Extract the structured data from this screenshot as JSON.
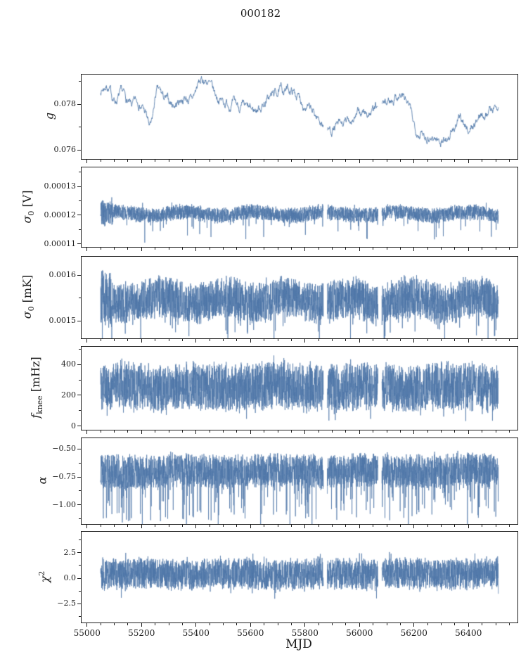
{
  "colors": {
    "line": "#4d76a8",
    "axis": "#1c1c1c",
    "background": "#ffffff"
  },
  "chart_data": {
    "type": "line",
    "title": "000182",
    "xlabel": "MJD",
    "grid": false,
    "legend": "none",
    "xlim": [
      54980,
      56580
    ],
    "x_data_range": [
      55050,
      56510
    ],
    "x_major_ticks": [
      {
        "v": 55000,
        "label": "55000"
      },
      {
        "v": 55200,
        "label": "55200"
      },
      {
        "v": 55400,
        "label": "55400"
      },
      {
        "v": 55600,
        "label": "55600"
      },
      {
        "v": 55800,
        "label": "55800"
      },
      {
        "v": 56000,
        "label": "56000"
      },
      {
        "v": 56200,
        "label": "56200"
      },
      {
        "v": 56400,
        "label": "56400"
      }
    ],
    "x_minor_step": 50,
    "gaps": [
      [
        55868,
        55882
      ],
      [
        56068,
        56082
      ]
    ],
    "panels": [
      {
        "name": "g",
        "ylabel": {
          "main": "g"
        },
        "ylim": [
          0.0756,
          0.0793
        ],
        "yticks": [
          {
            "v": 0.076,
            "label": "0.076"
          },
          {
            "v": 0.078,
            "label": "0.078"
          }
        ],
        "series": {
          "kind": "walk",
          "seed": 7,
          "jitter": 0.00012,
          "keypoints": [
            [
              55050,
              0.0786
            ],
            [
              55075,
              0.0788
            ],
            [
              55100,
              0.0782
            ],
            [
              55130,
              0.0784
            ],
            [
              55160,
              0.0779
            ],
            [
              55190,
              0.0781
            ],
            [
              55215,
              0.0776
            ],
            [
              55235,
              0.077
            ],
            [
              55255,
              0.0785
            ],
            [
              55285,
              0.0782
            ],
            [
              55320,
              0.078
            ],
            [
              55355,
              0.0783
            ],
            [
              55385,
              0.0782
            ],
            [
              55410,
              0.0789
            ],
            [
              55440,
              0.079
            ],
            [
              55470,
              0.0784
            ],
            [
              55505,
              0.0781
            ],
            [
              55540,
              0.078
            ],
            [
              55575,
              0.0778
            ],
            [
              55610,
              0.0777
            ],
            [
              55645,
              0.078
            ],
            [
              55680,
              0.0784
            ],
            [
              55715,
              0.0786
            ],
            [
              55750,
              0.0786
            ],
            [
              55785,
              0.0782
            ],
            [
              55820,
              0.0777
            ],
            [
              55855,
              0.0773
            ],
            [
              55885,
              0.0769
            ],
            [
              55915,
              0.077
            ],
            [
              55945,
              0.0771
            ],
            [
              55975,
              0.0774
            ],
            [
              56005,
              0.0776
            ],
            [
              56035,
              0.0776
            ],
            [
              56065,
              0.0778
            ],
            [
              56095,
              0.078
            ],
            [
              56125,
              0.0783
            ],
            [
              56155,
              0.0784
            ],
            [
              56180,
              0.0779
            ],
            [
              56205,
              0.077
            ],
            [
              56235,
              0.0767
            ],
            [
              56265,
              0.0766
            ],
            [
              56295,
              0.0764
            ],
            [
              56325,
              0.0766
            ],
            [
              56355,
              0.077
            ],
            [
              56375,
              0.0774
            ],
            [
              56395,
              0.0769
            ],
            [
              56420,
              0.0771
            ],
            [
              56450,
              0.0776
            ],
            [
              56480,
              0.0778
            ],
            [
              56510,
              0.0779
            ]
          ]
        }
      },
      {
        "name": "sigma0-v",
        "ylabel": {
          "main": "σ",
          "sub": "0",
          "post": " [V]"
        },
        "ylim": [
          0.000109,
          0.0001366
        ],
        "yticks": [
          {
            "v": 0.00011,
            "label": "0.00011"
          },
          {
            "v": 0.00012,
            "label": "0.00012"
          },
          {
            "v": 0.00013,
            "label": "0.00013"
          }
        ],
        "series": {
          "kind": "noise",
          "seed": 21,
          "center": 0.0001205,
          "halfband": 2.8e-06,
          "wave_amp": 7e-07,
          "wave_period": 260,
          "spike_down_rate": 0.02,
          "spike_down": 7.5e-06,
          "spike_up_rate": 0.008,
          "spike_up": 2.8e-06,
          "burst_until": 55095,
          "burst_factor": 1.8
        }
      },
      {
        "name": "sigma0-mk",
        "ylabel": {
          "main": "σ",
          "sub": "0",
          "post": " [mK]"
        },
        "ylim": [
          0.001462,
          0.00164
        ],
        "yticks": [
          {
            "v": 0.0015,
            "label": "0.0015"
          },
          {
            "v": 0.0016,
            "label": "0.0016"
          }
        ],
        "series": {
          "kind": "noise",
          "seed": 31,
          "center": 0.001545,
          "halfband": 4.7e-05,
          "wave_amp": 8e-06,
          "wave_period": 230,
          "spike_down_rate": 0.03,
          "spike_down": 7e-05,
          "spike_up_rate": 0.01,
          "spike_up": 3e-05,
          "burst_until": 55090,
          "burst_factor": 1.35
        }
      },
      {
        "name": "fknee",
        "ylabel": {
          "main": "f",
          "sub": "knee",
          "post": " [mHz]"
        },
        "ylim": [
          -23,
          514
        ],
        "yticks": [
          {
            "v": 0,
            "label": "0"
          },
          {
            "v": 200,
            "label": "200"
          },
          {
            "v": 400,
            "label": "400"
          }
        ],
        "series": {
          "kind": "noise",
          "seed": 41,
          "center": 255,
          "halfband": 160,
          "wave_amp": 10,
          "wave_period": 300,
          "spike_down_rate": 0.05,
          "spike_down": 90,
          "spike_up_rate": 0.03,
          "spike_up": 70
        }
      },
      {
        "name": "alpha",
        "ylabel": {
          "main": "α"
        },
        "ylim": [
          -1.169,
          -0.406
        ],
        "yticks": [
          {
            "v": -1.0,
            "label": "−1.00"
          },
          {
            "v": -0.75,
            "label": "−0.75"
          },
          {
            "v": -0.5,
            "label": "−0.50"
          }
        ],
        "series": {
          "kind": "noise",
          "seed": 51,
          "center": -0.695,
          "halfband": 0.155,
          "wave_amp": 0.01,
          "wave_period": 350,
          "spike_down_rate": 0.08,
          "spike_down": 0.42,
          "spike_up_rate": 0.01,
          "spike_up": 0.05
        }
      },
      {
        "name": "chi2",
        "ylabel": {
          "main": "χ",
          "sup": "2"
        },
        "ylim": [
          -4.37,
          4.58
        ],
        "yticks": [
          {
            "v": -2.5,
            "label": "−2.5"
          },
          {
            "v": 0.0,
            "label": "0.0"
          },
          {
            "v": 2.5,
            "label": "2.5"
          }
        ],
        "series": {
          "kind": "noise",
          "seed": 61,
          "center": 0.42,
          "halfband": 1.6,
          "wave_amp": 0.08,
          "wave_period": 320,
          "spike_down_rate": 0.025,
          "spike_down": 1.3,
          "spike_up_rate": 0.02,
          "spike_up": 1.1
        }
      }
    ]
  }
}
